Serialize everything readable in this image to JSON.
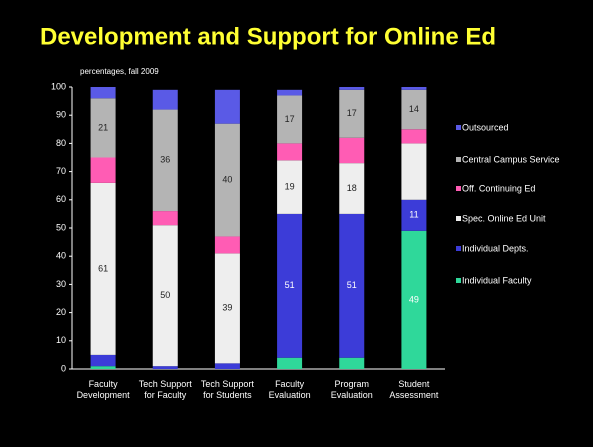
{
  "chart_data": {
    "type": "stacked_bar",
    "title": "Development and Support for Online Ed",
    "subtitle": "percentages, fall 2009",
    "categories": [
      "Faculty Development",
      "Tech Support for Faculty",
      "Tech Support for Students",
      "Faculty Evaluation",
      "Program Evaluation",
      "Student Assessment"
    ],
    "series": [
      {
        "name": "Individual Faculty",
        "color": "#2fd89a",
        "values": [
          1,
          0,
          0,
          4,
          4,
          49
        ],
        "value_labels": [
          null,
          null,
          null,
          null,
          null,
          "49"
        ]
      },
      {
        "name": "Individual Depts.",
        "color": "#3c3cd8",
        "values": [
          4,
          1,
          2,
          51,
          51,
          11
        ],
        "value_labels": [
          null,
          null,
          null,
          "51",
          "51",
          "11"
        ]
      },
      {
        "name": "Spec. Online Ed Unit",
        "color": "#eeeeee",
        "values": [
          61,
          50,
          39,
          19,
          18,
          20
        ],
        "value_labels": [
          "61",
          "50",
          "39",
          "19",
          "18",
          null
        ]
      },
      {
        "name": "Off. Continuing Ed",
        "color": "#ff5cb4",
        "values": [
          9,
          5,
          6,
          6,
          9,
          5
        ],
        "value_labels": [
          null,
          null,
          null,
          null,
          null,
          null
        ]
      },
      {
        "name": "Central Campus Service",
        "color": "#b4b4b4",
        "values": [
          21,
          36,
          40,
          17,
          17,
          14
        ],
        "value_labels": [
          "21",
          "36",
          "40",
          "17",
          "17",
          "14"
        ]
      },
      {
        "name": "Outsourced",
        "color": "#5a5ae6",
        "values": [
          4,
          7,
          12,
          2,
          1,
          1
        ],
        "value_labels": [
          null,
          null,
          null,
          null,
          null,
          null
        ]
      }
    ],
    "ylim": [
      0,
      100
    ],
    "yticks": [
      0,
      10,
      20,
      30,
      40,
      50,
      60,
      70,
      80,
      90,
      100
    ],
    "legend": "right"
  }
}
